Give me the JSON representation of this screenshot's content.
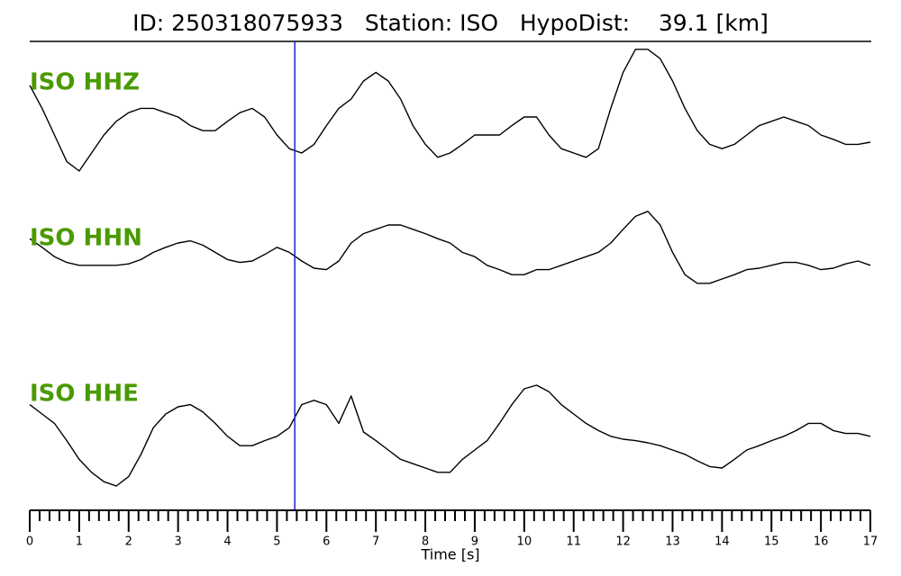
{
  "chart_data": {
    "type": "line",
    "title": "ID: 250318075933   Station: ISO   HypoDist:    39.1 [km]",
    "xlabel": "Time [s]",
    "xlim": [
      0,
      17
    ],
    "xticks": [
      0,
      1,
      2,
      3,
      4,
      5,
      6,
      7,
      8,
      9,
      10,
      11,
      12,
      13,
      14,
      15,
      16,
      17
    ],
    "xminor_ticks": [
      0.2,
      0.4,
      0.6,
      0.8,
      1.2,
      1.4,
      1.6,
      1.8,
      2.2,
      2.4,
      2.6,
      2.8,
      3.2,
      3.4,
      3.6,
      3.8,
      4.2,
      4.4,
      4.6,
      4.8,
      5.2,
      5.4,
      5.6,
      5.8,
      6.2,
      6.4,
      6.6,
      6.8,
      7.2,
      7.4,
      7.6,
      7.8,
      8.2,
      8.4,
      8.6,
      8.8,
      9.2,
      9.4,
      9.6,
      9.8,
      10.2,
      10.4,
      10.6,
      10.8,
      11.2,
      11.4,
      11.6,
      11.8,
      12.2,
      12.4,
      12.6,
      12.8,
      13.2,
      13.4,
      13.6,
      13.8,
      14.2,
      14.4,
      14.6,
      14.8,
      15.2,
      15.4,
      15.6,
      15.8,
      16.2,
      16.4,
      16.6,
      16.8
    ],
    "ylim": [
      -1,
      1
    ],
    "pick": {
      "x": 5.36,
      "color": "#1f1fd0"
    },
    "label_color": "#4a9a00",
    "x": [
      0,
      0.25,
      0.5,
      0.75,
      1,
      1.25,
      1.5,
      1.75,
      2,
      2.25,
      2.5,
      2.75,
      3,
      3.25,
      3.5,
      3.75,
      4,
      4.25,
      4.5,
      4.75,
      5,
      5.25,
      5.5,
      5.75,
      6,
      6.25,
      6.5,
      6.75,
      7,
      7.25,
      7.5,
      7.75,
      8,
      8.25,
      8.5,
      8.75,
      9,
      9.25,
      9.5,
      9.75,
      10,
      10.25,
      10.5,
      10.75,
      11,
      11.25,
      11.5,
      11.75,
      12,
      12.25,
      12.5,
      12.75,
      13,
      13.25,
      13.5,
      13.75,
      14,
      14.25,
      14.5,
      14.75,
      15,
      15.25,
      15.5,
      15.75,
      16,
      16.25,
      16.5,
      16.75,
      17
    ],
    "series": [
      {
        "name": "ISO HHZ",
        "color": "#000000",
        "values": [
          0.44,
          0.12,
          -0.25,
          -0.62,
          -0.75,
          -0.5,
          -0.25,
          -0.06,
          0.06,
          0.12,
          0.12,
          0.06,
          0,
          -0.12,
          -0.19,
          -0.19,
          -0.06,
          0.06,
          0.12,
          0,
          -0.25,
          -0.44,
          -0.5,
          -0.38,
          -0.12,
          0.12,
          0.25,
          0.5,
          0.62,
          0.5,
          0.25,
          -0.12,
          -0.38,
          -0.56,
          -0.5,
          -0.38,
          -0.25,
          -0.25,
          -0.25,
          -0.12,
          0,
          0,
          -0.25,
          -0.44,
          -0.5,
          -0.56,
          -0.44,
          0.12,
          0.62,
          0.94,
          0.94,
          0.81,
          0.5,
          0.12,
          -0.19,
          -0.38,
          -0.44,
          -0.38,
          -0.25,
          -0.12,
          -0.06,
          0,
          -0.06,
          -0.12,
          -0.25,
          -0.31,
          -0.38,
          -0.38,
          -0.35
        ]
      },
      {
        "name": "ISO HHN",
        "color": "#000000",
        "values": [
          0.31,
          0.19,
          0.06,
          -0.02,
          -0.06,
          -0.06,
          -0.06,
          -0.06,
          -0.04,
          0.02,
          0.12,
          0.19,
          0.25,
          0.28,
          0.22,
          0.12,
          0.02,
          -0.02,
          0,
          0.09,
          0.19,
          0.12,
          0,
          -0.1,
          -0.12,
          0,
          0.25,
          0.38,
          0.44,
          0.5,
          0.5,
          0.44,
          0.38,
          0.31,
          0.25,
          0.12,
          0.06,
          -0.06,
          -0.12,
          -0.19,
          -0.19,
          -0.12,
          -0.12,
          -0.06,
          0,
          0.06,
          0.12,
          0.25,
          0.44,
          0.62,
          0.69,
          0.5,
          0.12,
          -0.19,
          -0.31,
          -0.31,
          -0.25,
          -0.19,
          -0.12,
          -0.1,
          -0.06,
          -0.02,
          -0.02,
          -0.06,
          -0.12,
          -0.1,
          -0.04,
          0,
          -0.06
        ]
      },
      {
        "name": "ISO HHE",
        "color": "#000000",
        "values": [
          0.38,
          0.25,
          0.12,
          -0.12,
          -0.38,
          -0.56,
          -0.69,
          -0.75,
          -0.62,
          -0.31,
          0.06,
          0.25,
          0.35,
          0.38,
          0.28,
          0.12,
          -0.06,
          -0.19,
          -0.19,
          -0.12,
          -0.06,
          0.06,
          0.38,
          0.44,
          0.38,
          0.12,
          0.5,
          0,
          -0.12,
          -0.25,
          -0.38,
          -0.44,
          -0.5,
          -0.56,
          -0.56,
          -0.38,
          -0.25,
          -0.12,
          0.12,
          0.38,
          0.6,
          0.65,
          0.56,
          0.38,
          0.25,
          0.12,
          0.02,
          -0.06,
          -0.1,
          -0.12,
          -0.15,
          -0.19,
          -0.25,
          -0.31,
          -0.4,
          -0.48,
          -0.5,
          -0.38,
          -0.25,
          -0.19,
          -0.12,
          -0.06,
          0.02,
          0.12,
          0.12,
          0.02,
          -0.02,
          -0.02,
          -0.06
        ]
      }
    ]
  }
}
